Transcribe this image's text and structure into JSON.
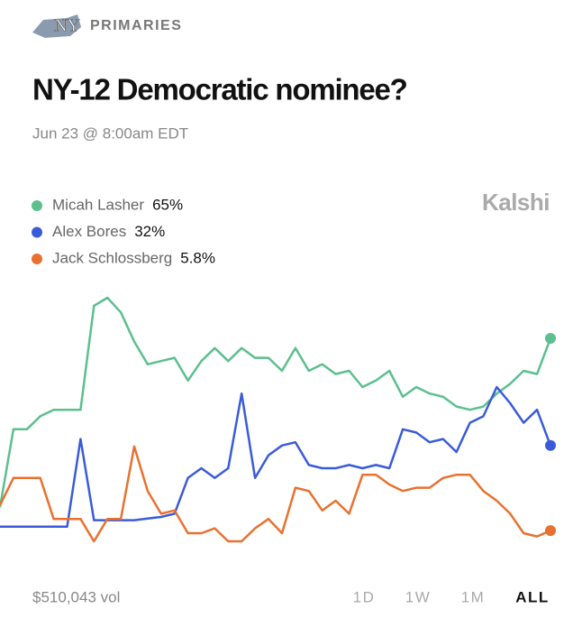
{
  "header": {
    "logo": "NY",
    "section": "PRIMARIES"
  },
  "brand": "Kalshi",
  "chart_data": {
    "type": "line",
    "title": "NY-12 Democratic nominee?",
    "subtitle": "Jun 23 @ 8:00am EDT",
    "ylim": [
      0,
      85
    ],
    "series": [
      {
        "name": "Micah Lasher",
        "color": "#5cbf8e",
        "current_label": "65%",
        "values": [
          13,
          37,
          37,
          41,
          43,
          43,
          43,
          75,
          77.5,
          73,
          64,
          57,
          58,
          59,
          52,
          58,
          62,
          58,
          62,
          59,
          59,
          55,
          62,
          55,
          57,
          54,
          55,
          50,
          52,
          55,
          47,
          50,
          48,
          47,
          44,
          43,
          44,
          48,
          51,
          55,
          54,
          65
        ]
      },
      {
        "name": "Alex Bores",
        "color": "#3a5bd9",
        "current_label": "32%",
        "values": [
          7,
          7,
          7,
          7,
          7,
          7,
          34,
          9,
          9,
          9,
          9,
          9.5,
          10,
          11,
          22,
          25,
          22,
          25,
          48,
          22,
          29,
          32,
          33,
          26,
          25,
          25,
          26,
          25,
          26,
          25,
          37,
          36,
          33,
          34,
          30,
          39,
          41,
          50,
          45,
          39,
          43,
          32
        ]
      },
      {
        "name": "Jack Schlossberg",
        "color": "#e8712f",
        "current_label": "5.8%",
        "values": [
          13.6,
          22,
          22,
          22,
          9.4,
          9.4,
          9.4,
          2.5,
          9.4,
          9.4,
          31.7,
          18,
          11,
          12,
          5,
          5,
          6.5,
          2.5,
          2.5,
          6.5,
          9.4,
          5,
          19,
          18,
          12,
          15,
          11,
          23,
          23,
          20,
          18,
          19,
          19,
          22,
          23,
          23,
          18,
          15,
          11,
          5,
          4,
          5.8
        ]
      }
    ]
  },
  "footer": {
    "volume": "$510,043 vol",
    "ranges": [
      "1D",
      "1W",
      "1M",
      "ALL"
    ],
    "active_range": 3
  }
}
